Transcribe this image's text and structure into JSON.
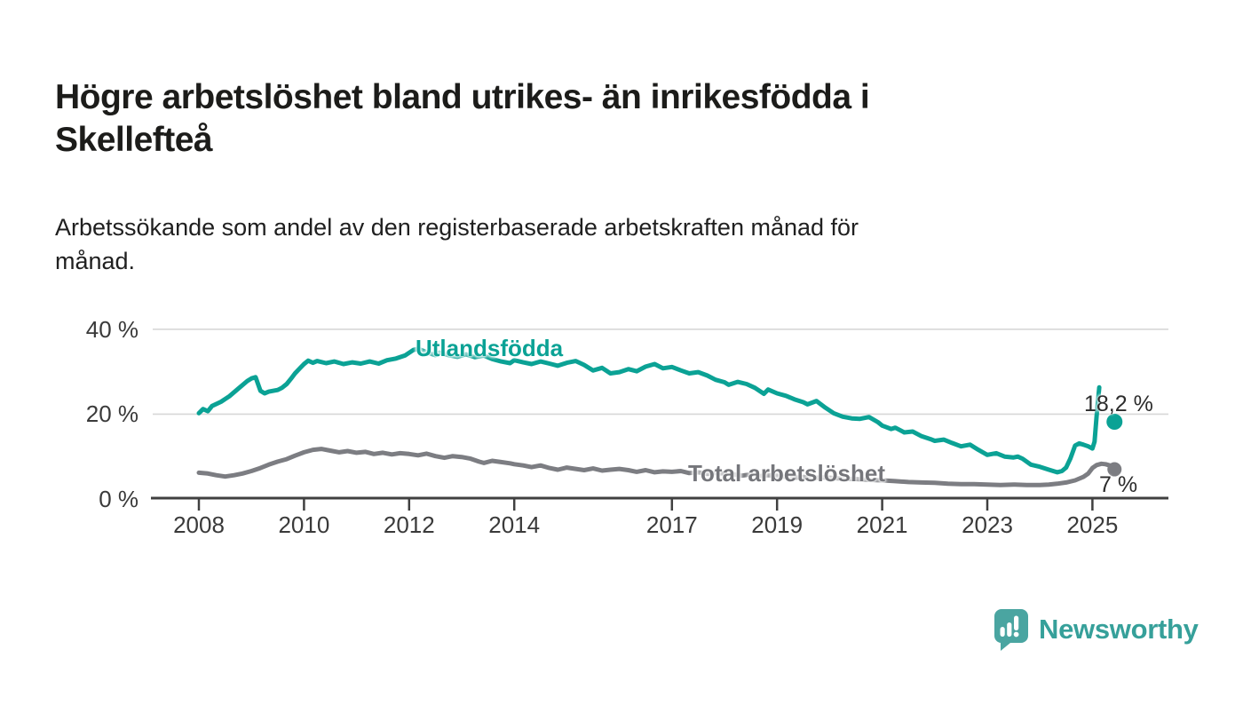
{
  "header": {
    "title_lines": [
      "Högre arbetslöshet bland utrikes- än inrikesfödda i",
      "Skellefteå"
    ],
    "subtitle_lines": [
      "Arbetssökande som andel av den registerbaserade arbetskraften månad för",
      "månad."
    ]
  },
  "footer": {
    "brand": "Newsworthy"
  },
  "colors": {
    "accent_teal": "#0ba295",
    "series_gray": "#7c7d82",
    "grid": "#d8d8d8",
    "axis": "#404040",
    "tick_text": "#3a3a3a",
    "title_text": "#1c1c1a",
    "brand_teal": "#36a09a",
    "logo_bubble_teal": "#4aa5a1"
  },
  "chart_data": {
    "type": "line",
    "title": "Högre arbetslöshet bland utrikes- än inrikesfödda i Skellefteå",
    "subtitle": "Arbetssökande som andel av den registerbaserade arbetskraften månad för månad.",
    "xlabel": "",
    "ylabel": "",
    "grid": "horizontal",
    "legend_position": "inline-labels",
    "xlim": [
      2007.1,
      2026.4
    ],
    "ylim": [
      0,
      40
    ],
    "y_ticks": [
      {
        "value": 0,
        "label": "0 %"
      },
      {
        "value": 20,
        "label": "20 %"
      },
      {
        "value": 40,
        "label": "40 %"
      }
    ],
    "x_ticks": [
      {
        "year": 2008,
        "label": "2008"
      },
      {
        "year": 2010,
        "label": "2010"
      },
      {
        "year": 2012,
        "label": "2012"
      },
      {
        "year": 2014,
        "label": "2014"
      },
      {
        "year": 2017,
        "label": "2017"
      },
      {
        "year": 2019,
        "label": "2019"
      },
      {
        "year": 2021,
        "label": "2021"
      },
      {
        "year": 2023,
        "label": "2023"
      },
      {
        "year": 2025,
        "label": "2025"
      }
    ],
    "series": [
      {
        "name": "Utlandsfödda",
        "color": "#0ba295",
        "end_label": "18,2 %",
        "end_value": 18.2,
        "end_x": 2025.42,
        "points": [
          [
            2008.0,
            20.2
          ],
          [
            2008.08,
            21.2
          ],
          [
            2008.17,
            20.7
          ],
          [
            2008.25,
            21.9
          ],
          [
            2008.42,
            22.9
          ],
          [
            2008.58,
            24.2
          ],
          [
            2008.75,
            26.0
          ],
          [
            2008.92,
            27.8
          ],
          [
            2009.0,
            28.4
          ],
          [
            2009.08,
            28.7
          ],
          [
            2009.17,
            25.5
          ],
          [
            2009.25,
            24.9
          ],
          [
            2009.33,
            25.3
          ],
          [
            2009.5,
            25.7
          ],
          [
            2009.58,
            26.2
          ],
          [
            2009.67,
            27.1
          ],
          [
            2009.75,
            28.3
          ],
          [
            2009.83,
            29.6
          ],
          [
            2009.92,
            30.8
          ],
          [
            2010.0,
            31.8
          ],
          [
            2010.08,
            32.6
          ],
          [
            2010.17,
            32.1
          ],
          [
            2010.25,
            32.5
          ],
          [
            2010.42,
            32.0
          ],
          [
            2010.58,
            32.4
          ],
          [
            2010.75,
            31.8
          ],
          [
            2010.92,
            32.2
          ],
          [
            2011.08,
            31.9
          ],
          [
            2011.25,
            32.4
          ],
          [
            2011.42,
            31.9
          ],
          [
            2011.58,
            32.7
          ],
          [
            2011.75,
            33.1
          ],
          [
            2011.92,
            33.8
          ],
          [
            2012.08,
            35.1
          ],
          [
            2012.17,
            35.4
          ],
          [
            2012.33,
            34.6
          ],
          [
            2012.5,
            33.9
          ],
          [
            2012.58,
            34.5
          ],
          [
            2012.75,
            33.9
          ],
          [
            2012.92,
            33.5
          ],
          [
            2013.08,
            34.1
          ],
          [
            2013.25,
            33.4
          ],
          [
            2013.42,
            33.8
          ],
          [
            2013.58,
            33.0
          ],
          [
            2013.75,
            32.4
          ],
          [
            2013.92,
            32.0
          ],
          [
            2014.0,
            32.7
          ],
          [
            2014.17,
            32.2
          ],
          [
            2014.33,
            31.8
          ],
          [
            2014.5,
            32.4
          ],
          [
            2014.67,
            31.9
          ],
          [
            2014.83,
            31.4
          ],
          [
            2015.0,
            32.1
          ],
          [
            2015.17,
            32.5
          ],
          [
            2015.33,
            31.6
          ],
          [
            2015.5,
            30.3
          ],
          [
            2015.67,
            30.9
          ],
          [
            2015.83,
            29.6
          ],
          [
            2016.0,
            29.9
          ],
          [
            2016.17,
            30.6
          ],
          [
            2016.33,
            30.1
          ],
          [
            2016.5,
            31.2
          ],
          [
            2016.67,
            31.8
          ],
          [
            2016.83,
            30.8
          ],
          [
            2017.0,
            31.1
          ],
          [
            2017.17,
            30.3
          ],
          [
            2017.33,
            29.6
          ],
          [
            2017.5,
            29.9
          ],
          [
            2017.67,
            29.1
          ],
          [
            2017.83,
            28.1
          ],
          [
            2018.0,
            27.5
          ],
          [
            2018.08,
            26.9
          ],
          [
            2018.25,
            27.6
          ],
          [
            2018.42,
            27.1
          ],
          [
            2018.58,
            26.2
          ],
          [
            2018.75,
            24.8
          ],
          [
            2018.83,
            25.8
          ],
          [
            2019.0,
            24.9
          ],
          [
            2019.17,
            24.3
          ],
          [
            2019.33,
            23.5
          ],
          [
            2019.5,
            22.8
          ],
          [
            2019.58,
            22.3
          ],
          [
            2019.75,
            23.1
          ],
          [
            2019.92,
            21.5
          ],
          [
            2020.08,
            20.2
          ],
          [
            2020.25,
            19.4
          ],
          [
            2020.42,
            19.0
          ],
          [
            2020.58,
            18.9
          ],
          [
            2020.75,
            19.3
          ],
          [
            2020.92,
            18.1
          ],
          [
            2021.0,
            17.3
          ],
          [
            2021.17,
            16.5
          ],
          [
            2021.25,
            16.8
          ],
          [
            2021.42,
            15.7
          ],
          [
            2021.58,
            15.9
          ],
          [
            2021.75,
            14.8
          ],
          [
            2021.92,
            14.1
          ],
          [
            2022.0,
            13.7
          ],
          [
            2022.17,
            14.0
          ],
          [
            2022.33,
            13.2
          ],
          [
            2022.5,
            12.4
          ],
          [
            2022.67,
            12.8
          ],
          [
            2022.83,
            11.6
          ],
          [
            2023.0,
            10.4
          ],
          [
            2023.17,
            10.8
          ],
          [
            2023.33,
            10.0
          ],
          [
            2023.5,
            9.8
          ],
          [
            2023.58,
            10.0
          ],
          [
            2023.67,
            9.5
          ],
          [
            2023.83,
            8.1
          ],
          [
            2024.0,
            7.6
          ],
          [
            2024.17,
            6.9
          ],
          [
            2024.33,
            6.3
          ],
          [
            2024.42,
            6.6
          ],
          [
            2024.5,
            7.4
          ],
          [
            2024.58,
            9.5
          ],
          [
            2024.67,
            12.6
          ],
          [
            2024.75,
            13.1
          ],
          [
            2024.83,
            12.8
          ],
          [
            2024.92,
            12.4
          ],
          [
            2025.0,
            11.9
          ],
          [
            2025.04,
            13.5
          ],
          [
            2025.08,
            19.5
          ],
          [
            2025.13,
            26.3
          ]
        ]
      },
      {
        "name": "Total arbetslöshet",
        "color": "#7c7d82",
        "end_label": "7 %",
        "end_value": 7.0,
        "end_x": 2025.42,
        "points": [
          [
            2008.0,
            6.2
          ],
          [
            2008.17,
            6.0
          ],
          [
            2008.33,
            5.6
          ],
          [
            2008.5,
            5.3
          ],
          [
            2008.67,
            5.6
          ],
          [
            2008.83,
            6.0
          ],
          [
            2009.0,
            6.6
          ],
          [
            2009.17,
            7.3
          ],
          [
            2009.33,
            8.1
          ],
          [
            2009.5,
            8.8
          ],
          [
            2009.67,
            9.4
          ],
          [
            2009.83,
            10.2
          ],
          [
            2010.0,
            11.0
          ],
          [
            2010.17,
            11.6
          ],
          [
            2010.33,
            11.8
          ],
          [
            2010.5,
            11.4
          ],
          [
            2010.67,
            11.0
          ],
          [
            2010.83,
            11.3
          ],
          [
            2011.0,
            10.9
          ],
          [
            2011.17,
            11.1
          ],
          [
            2011.33,
            10.6
          ],
          [
            2011.5,
            10.9
          ],
          [
            2011.67,
            10.5
          ],
          [
            2011.83,
            10.8
          ],
          [
            2012.0,
            10.6
          ],
          [
            2012.17,
            10.3
          ],
          [
            2012.33,
            10.7
          ],
          [
            2012.5,
            10.1
          ],
          [
            2012.67,
            9.7
          ],
          [
            2012.83,
            10.1
          ],
          [
            2013.0,
            9.9
          ],
          [
            2013.17,
            9.5
          ],
          [
            2013.33,
            8.8
          ],
          [
            2013.42,
            8.5
          ],
          [
            2013.58,
            9.0
          ],
          [
            2013.75,
            8.7
          ],
          [
            2013.92,
            8.4
          ],
          [
            2014.0,
            8.2
          ],
          [
            2014.17,
            7.9
          ],
          [
            2014.33,
            7.5
          ],
          [
            2014.5,
            7.9
          ],
          [
            2014.67,
            7.3
          ],
          [
            2014.83,
            6.9
          ],
          [
            2015.0,
            7.4
          ],
          [
            2015.17,
            7.1
          ],
          [
            2015.33,
            6.8
          ],
          [
            2015.5,
            7.2
          ],
          [
            2015.67,
            6.7
          ],
          [
            2015.83,
            6.9
          ],
          [
            2016.0,
            7.1
          ],
          [
            2016.17,
            6.8
          ],
          [
            2016.33,
            6.4
          ],
          [
            2016.5,
            6.8
          ],
          [
            2016.67,
            6.3
          ],
          [
            2016.83,
            6.5
          ],
          [
            2017.0,
            6.4
          ],
          [
            2017.17,
            6.6
          ],
          [
            2017.33,
            6.1
          ],
          [
            2017.5,
            6.3
          ],
          [
            2017.67,
            5.9
          ],
          [
            2017.83,
            6.1
          ],
          [
            2018.0,
            6.0
          ],
          [
            2018.17,
            5.8
          ],
          [
            2018.33,
            5.5
          ],
          [
            2018.5,
            5.8
          ],
          [
            2018.67,
            5.4
          ],
          [
            2018.83,
            5.6
          ],
          [
            2019.0,
            5.5
          ],
          [
            2019.17,
            5.2
          ],
          [
            2019.33,
            5.0
          ],
          [
            2019.5,
            5.2
          ],
          [
            2019.67,
            4.9
          ],
          [
            2019.83,
            5.1
          ],
          [
            2020.0,
            5.0
          ],
          [
            2020.25,
            4.8
          ],
          [
            2020.5,
            4.7
          ],
          [
            2020.75,
            4.5
          ],
          [
            2021.0,
            4.4
          ],
          [
            2021.25,
            4.2
          ],
          [
            2021.5,
            4.0
          ],
          [
            2021.75,
            3.9
          ],
          [
            2022.0,
            3.8
          ],
          [
            2022.25,
            3.6
          ],
          [
            2022.5,
            3.5
          ],
          [
            2022.75,
            3.5
          ],
          [
            2023.0,
            3.4
          ],
          [
            2023.25,
            3.3
          ],
          [
            2023.5,
            3.4
          ],
          [
            2023.75,
            3.3
          ],
          [
            2024.0,
            3.3
          ],
          [
            2024.17,
            3.4
          ],
          [
            2024.33,
            3.6
          ],
          [
            2024.5,
            3.9
          ],
          [
            2024.67,
            4.4
          ],
          [
            2024.83,
            5.2
          ],
          [
            2024.92,
            6.0
          ],
          [
            2025.0,
            7.3
          ],
          [
            2025.08,
            8.0
          ],
          [
            2025.17,
            8.3
          ],
          [
            2025.25,
            8.2
          ],
          [
            2025.33,
            7.9
          ],
          [
            2025.42,
            7.2
          ]
        ]
      }
    ]
  }
}
